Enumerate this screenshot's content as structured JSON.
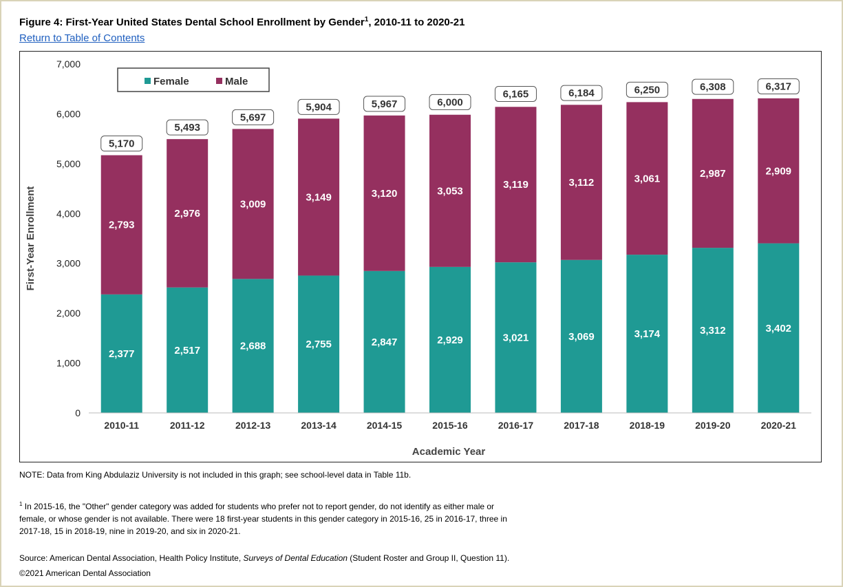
{
  "header": {
    "title_main": "Figure 4: First-Year United States Dental School Enrollment by Gender",
    "title_sup": "1",
    "title_tail": ", 2010-11 to 2020-21",
    "toc_link": "Return to Table of Contents"
  },
  "chart_data": {
    "type": "bar",
    "stacked": true,
    "categories": [
      "2010-11",
      "2011-12",
      "2012-13",
      "2013-14",
      "2014-15",
      "2015-16",
      "2016-17",
      "2017-18",
      "2018-19",
      "2019-20",
      "2020-21"
    ],
    "series": [
      {
        "name": "Female",
        "color": "#1f9a94",
        "values": [
          2377,
          2517,
          2688,
          2755,
          2847,
          2929,
          3021,
          3069,
          3174,
          3312,
          3402
        ]
      },
      {
        "name": "Male",
        "color": "#95305f",
        "values": [
          2793,
          2976,
          3009,
          3149,
          3120,
          3053,
          3119,
          3112,
          3061,
          2987,
          2909
        ]
      }
    ],
    "totals": [
      5170,
      5493,
      5697,
      5904,
      5967,
      6000,
      6165,
      6184,
      6250,
      6308,
      6317
    ],
    "xlabel": "Academic Year",
    "ylabel": "First-Year Enrollment",
    "ylim": [
      0,
      7000
    ],
    "yticks": [
      0,
      1000,
      2000,
      3000,
      4000,
      5000,
      6000,
      7000
    ],
    "grid": false,
    "legend_position": "top-left"
  },
  "notes": {
    "note": "NOTE: Data from King Abdulaziz University is not included in this graph; see school-level data in Table 11b.",
    "footnote_mark": "1",
    "footnote": " In 2015-16, the \"Other\" gender category was added for students who prefer not to report gender, do not identify as either male or female, or whose gender is not available. There were 18 first-year students in this gender category in 2015-16, 25 in 2016-17, three in 2017-18, 15 in 2018-19, nine in 2019-20, and six in 2020-21.",
    "source_prefix": "Source: American Dental Association, Health Policy Institute, ",
    "source_italic": "Surveys of Dental Education",
    "source_suffix": " (Student Roster and Group II, Question 11).",
    "copyright": "©2021 American Dental Association"
  }
}
